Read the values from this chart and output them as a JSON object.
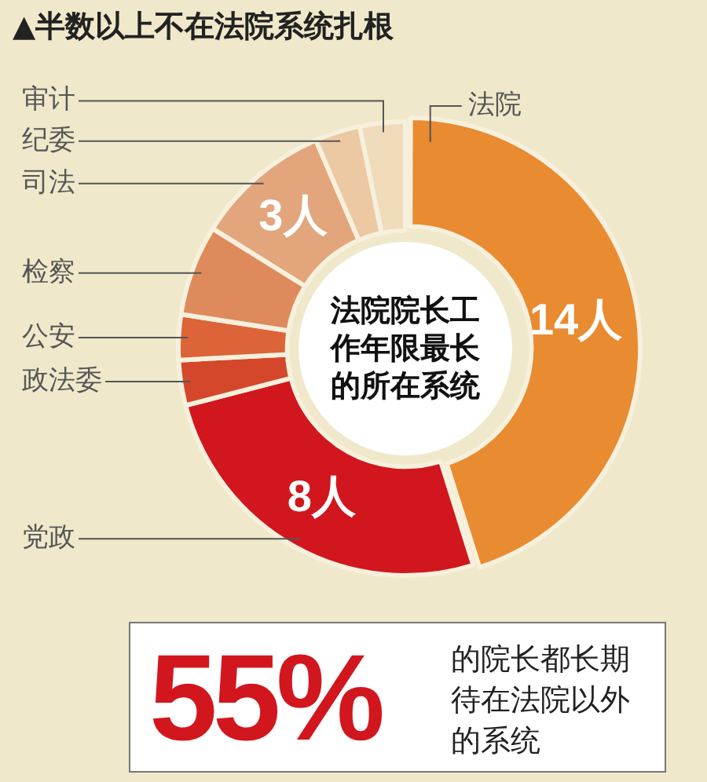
{
  "chart_data": {
    "type": "donut",
    "title": "▲半数以上不在法院系统扎根",
    "categories": [
      "法院",
      "党政",
      "政法委",
      "公安",
      "检察",
      "司法",
      "纪委",
      "审计"
    ],
    "values": [
      14,
      8,
      1,
      1,
      2,
      3,
      1,
      1
    ],
    "colors": [
      "#e98b30",
      "#d2161e",
      "#d5472a",
      "#dc6438",
      "#df8a5c",
      "#e2a57c",
      "#ecc9a3",
      "#f0dbbb"
    ],
    "value_labels": [
      "14人",
      "8人",
      null,
      null,
      null,
      "3人",
      null,
      null
    ],
    "legend": false,
    "annotations": [
      "法院院长工作年限最长的所在系统",
      "55%",
      "的院长都长期待在法院以外的系统"
    ]
  }
}
